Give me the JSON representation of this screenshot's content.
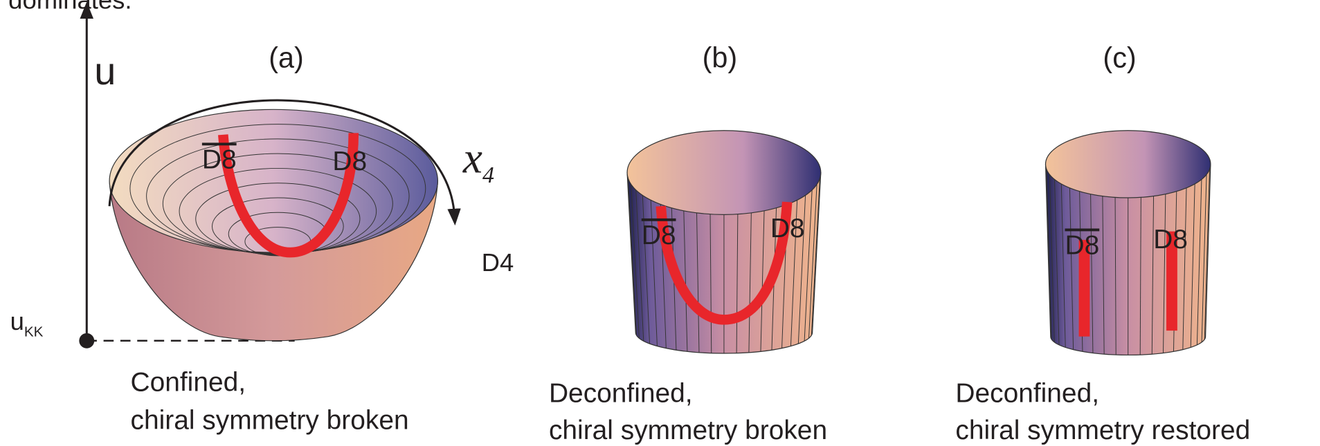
{
  "top_text": "dominates.",
  "axis": {
    "label": "u",
    "base_label": "u",
    "base_subscript": "KK"
  },
  "x4": {
    "label": "x",
    "subscript": "4"
  },
  "d4_label": "D4",
  "panels": [
    {
      "label": "(a)",
      "d8bar": "D8",
      "d8": "D8",
      "caption_line1": "Confined,",
      "caption_line2": "chiral symmetry broken"
    },
    {
      "label": "(b)",
      "d8bar": "D8",
      "d8": "D8",
      "caption_line1": "Deconfined,",
      "caption_line2": "chiral symmetry broken"
    },
    {
      "label": "(c)",
      "d8bar": "D8",
      "d8": "D8",
      "caption_line1": "Deconfined,",
      "caption_line2": "chiral symmetry restored"
    }
  ]
}
